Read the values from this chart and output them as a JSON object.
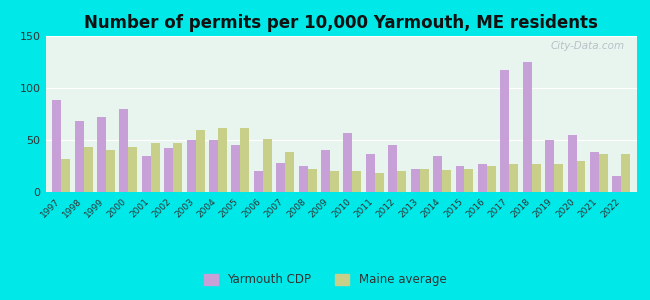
{
  "years": [
    1997,
    1998,
    1999,
    2000,
    2001,
    2002,
    2003,
    2004,
    2005,
    2006,
    2007,
    2008,
    2009,
    2010,
    2011,
    2012,
    2013,
    2014,
    2015,
    2016,
    2017,
    2018,
    2019,
    2020,
    2021,
    2022
  ],
  "yarmouth": [
    88,
    68,
    72,
    80,
    35,
    42,
    50,
    50,
    45,
    20,
    28,
    25,
    40,
    57,
    37,
    45,
    22,
    35,
    25,
    27,
    117,
    125,
    50,
    55,
    38,
    15
  ],
  "maine": [
    32,
    43,
    40,
    43,
    47,
    47,
    60,
    62,
    62,
    51,
    38,
    22,
    20,
    20,
    18,
    20,
    22,
    21,
    22,
    25,
    27,
    27,
    27,
    30,
    37,
    37
  ],
  "yarmouth_color": "#c8a0d8",
  "maine_color": "#c8cf88",
  "title": "Number of permits per 10,000 Yarmouth, ME residents",
  "title_fontsize": 12,
  "ylim": [
    0,
    150
  ],
  "yticks": [
    0,
    50,
    100,
    150
  ],
  "plot_bg": "#e8f5ee",
  "outer_bg": "#00e8e8",
  "legend_yarmouth": "Yarmouth CDP",
  "legend_maine": "Maine average",
  "watermark": "City-Data.com"
}
